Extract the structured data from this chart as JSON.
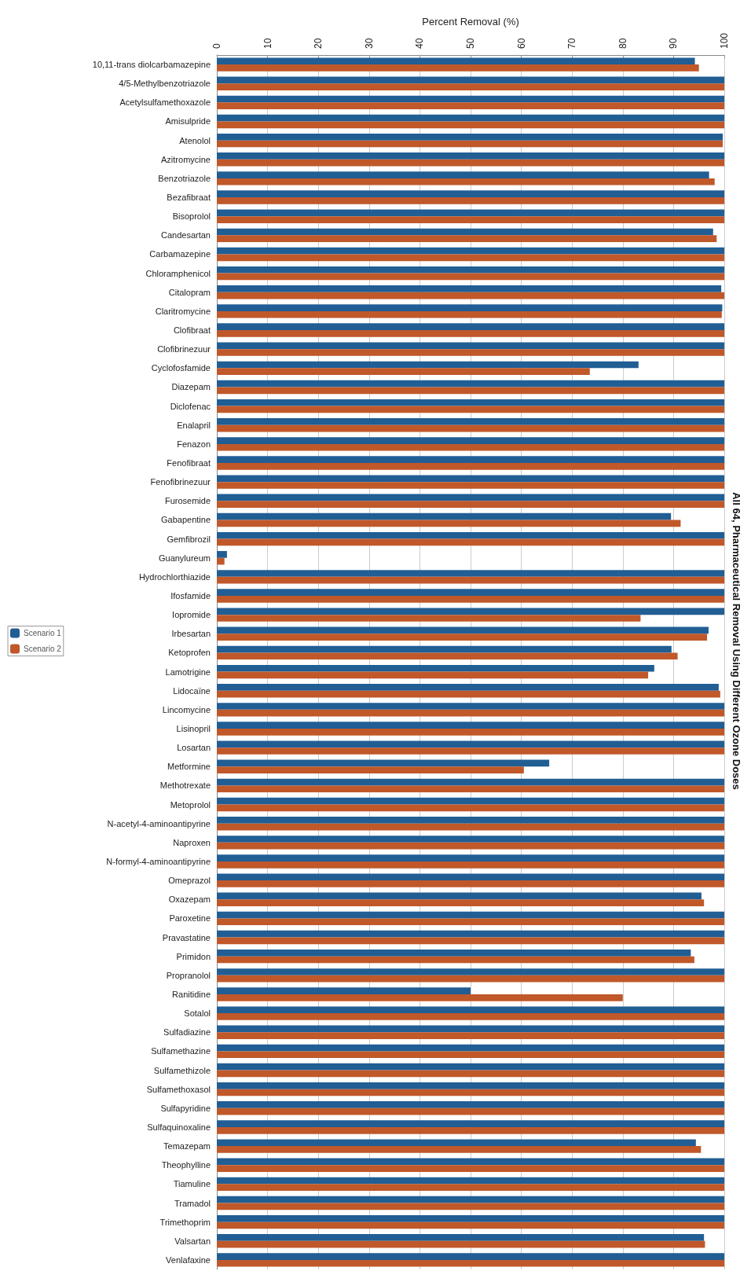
{
  "chart_data": {
    "type": "bar",
    "orientation": "horizontal",
    "title": "All 64, Pharmaceutical Removal Using Different Ozone Doses",
    "xlabel": "Percent Removal (%)",
    "categories": [
      "10,11-trans diolcarbamazepine",
      "4/5-Methylbenzotriazole",
      "Acetylsulfamethoxazole",
      "Amisulpride",
      "Atenolol",
      "Azitromycine",
      "Benzotriazole",
      "Bezafibraat",
      "Bisoprolol",
      "Candesartan",
      "Carbamazepine",
      "Chloramphenicol",
      "Citalopram",
      "Claritromycine",
      "Clofibraat",
      "Clofibrinezuur",
      "Cyclofosfamide",
      "Diazepam",
      "Diclofenac",
      "Enalapril",
      "Fenazon",
      "Fenofibraat",
      "Fenofibrinezuur",
      "Furosemide",
      "Gabapentine",
      "Gemfibrozil",
      "Guanylureum",
      "Hydrochlorthiazide",
      "Ifosfamide",
      "Iopromide",
      "Irbesartan",
      "Ketoprofen",
      "Lamotrigine",
      "Lidocaïne",
      "Lincomycine",
      "Lisinopril",
      "Losartan",
      "Metformine",
      "Methotrexate",
      "Metoprolol",
      "N-acetyl-4-aminoantipyrine",
      "Naproxen",
      "N-formyl-4-aminoantipyrine",
      "Omeprazol",
      "Oxazepam",
      "Paroxetine",
      "Pravastatine",
      "Primidon",
      "Propranolol",
      "Ranitidine",
      "Sotalol",
      "Sulfadiazine",
      "Sulfamethazine",
      "Sulfamethizole",
      "Sulfamethoxasol",
      "Sulfapyridine",
      "Sulfaquinoxaline",
      "Temazepam",
      "Theophylline",
      "Tiamuline",
      "Tramadol",
      "Trimethoprim",
      "Valsartan",
      "Venlafaxine"
    ],
    "series": [
      {
        "name": "Scenario 1",
        "color": "#215e94",
        "values": [
          94.2,
          100,
          100,
          100,
          99.7,
          100,
          97,
          100,
          100,
          97.8,
          100,
          100,
          99.4,
          99.6,
          100,
          100,
          83.1,
          100,
          100,
          100,
          100,
          100,
          100,
          100,
          89.5,
          100,
          2,
          100,
          100,
          100,
          96.9,
          89.6,
          86.2,
          98.9,
          100,
          100,
          100,
          65.5,
          100,
          100,
          100,
          100,
          100,
          100,
          95.5,
          100,
          100,
          93.4,
          100,
          50,
          100,
          100,
          100,
          100,
          100,
          100,
          100,
          94.4,
          100,
          100,
          100,
          100,
          96,
          100
        ]
      },
      {
        "name": "Scenario 2",
        "color": "#c0582a",
        "values": [
          95,
          100,
          100,
          100,
          99.7,
          100,
          98.1,
          100,
          100,
          98.5,
          100,
          100,
          100,
          99.5,
          100,
          100,
          73.5,
          100,
          100,
          100,
          100,
          100,
          100,
          100,
          91.4,
          100,
          1.5,
          100,
          100,
          83.5,
          96.6,
          90.8,
          85,
          99.2,
          100,
          100,
          100,
          60.5,
          100,
          100,
          100,
          100,
          100,
          100,
          96,
          100,
          100,
          94.1,
          100,
          80,
          100,
          100,
          100,
          100,
          100,
          100,
          100,
          95.4,
          100,
          100,
          100,
          100,
          96.2,
          100
        ]
      }
    ],
    "xlim": [
      0,
      100
    ],
    "xticks": [
      0,
      10,
      20,
      30,
      40,
      50,
      60,
      70,
      80,
      90,
      100
    ],
    "grid": "x",
    "legend": "left"
  }
}
